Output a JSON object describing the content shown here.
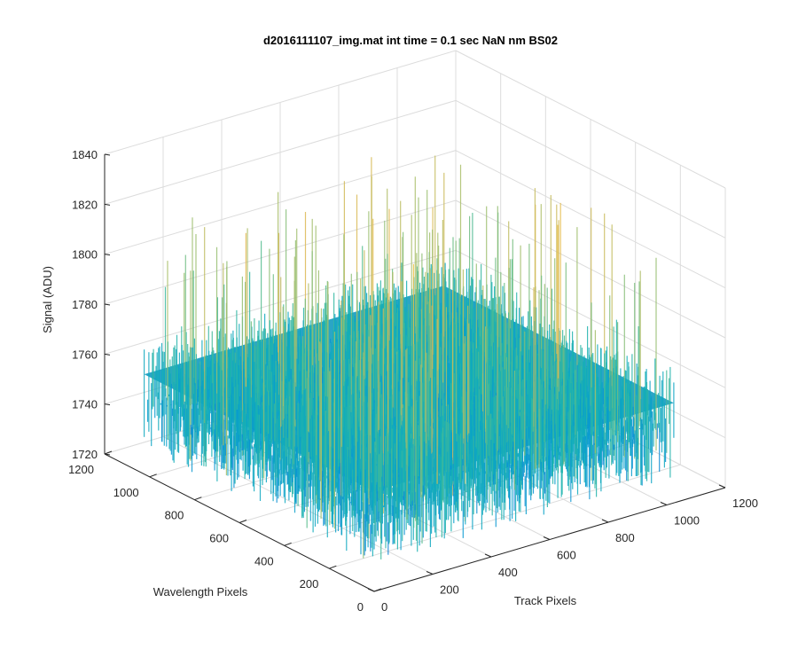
{
  "chart_data": {
    "type": "surface",
    "title": "d2016111107_img.mat int time = 0.1 sec  NaN nm BS02",
    "xlabel": "Track Pixels",
    "ylabel": "Wavelength Pixels",
    "zlabel": "Signal (ADU)",
    "xlim": [
      0,
      1200
    ],
    "ylim": [
      0,
      1200
    ],
    "zlim": [
      1720,
      1840
    ],
    "x_ticks": [
      "0",
      "200",
      "400",
      "600",
      "800",
      "1000",
      "1200"
    ],
    "y_ticks": [
      "0",
      "200",
      "400",
      "600",
      "800",
      "1000",
      "1200"
    ],
    "z_ticks": [
      "1720",
      "1740",
      "1760",
      "1780",
      "1800",
      "1820",
      "1840"
    ],
    "grid": true,
    "colormap": "parula",
    "surface": {
      "x_range": [
        0,
        1024
      ],
      "y_range": [
        0,
        1024
      ],
      "mean": 1760,
      "noise_min": 1735,
      "noise_max": 1825
    }
  }
}
